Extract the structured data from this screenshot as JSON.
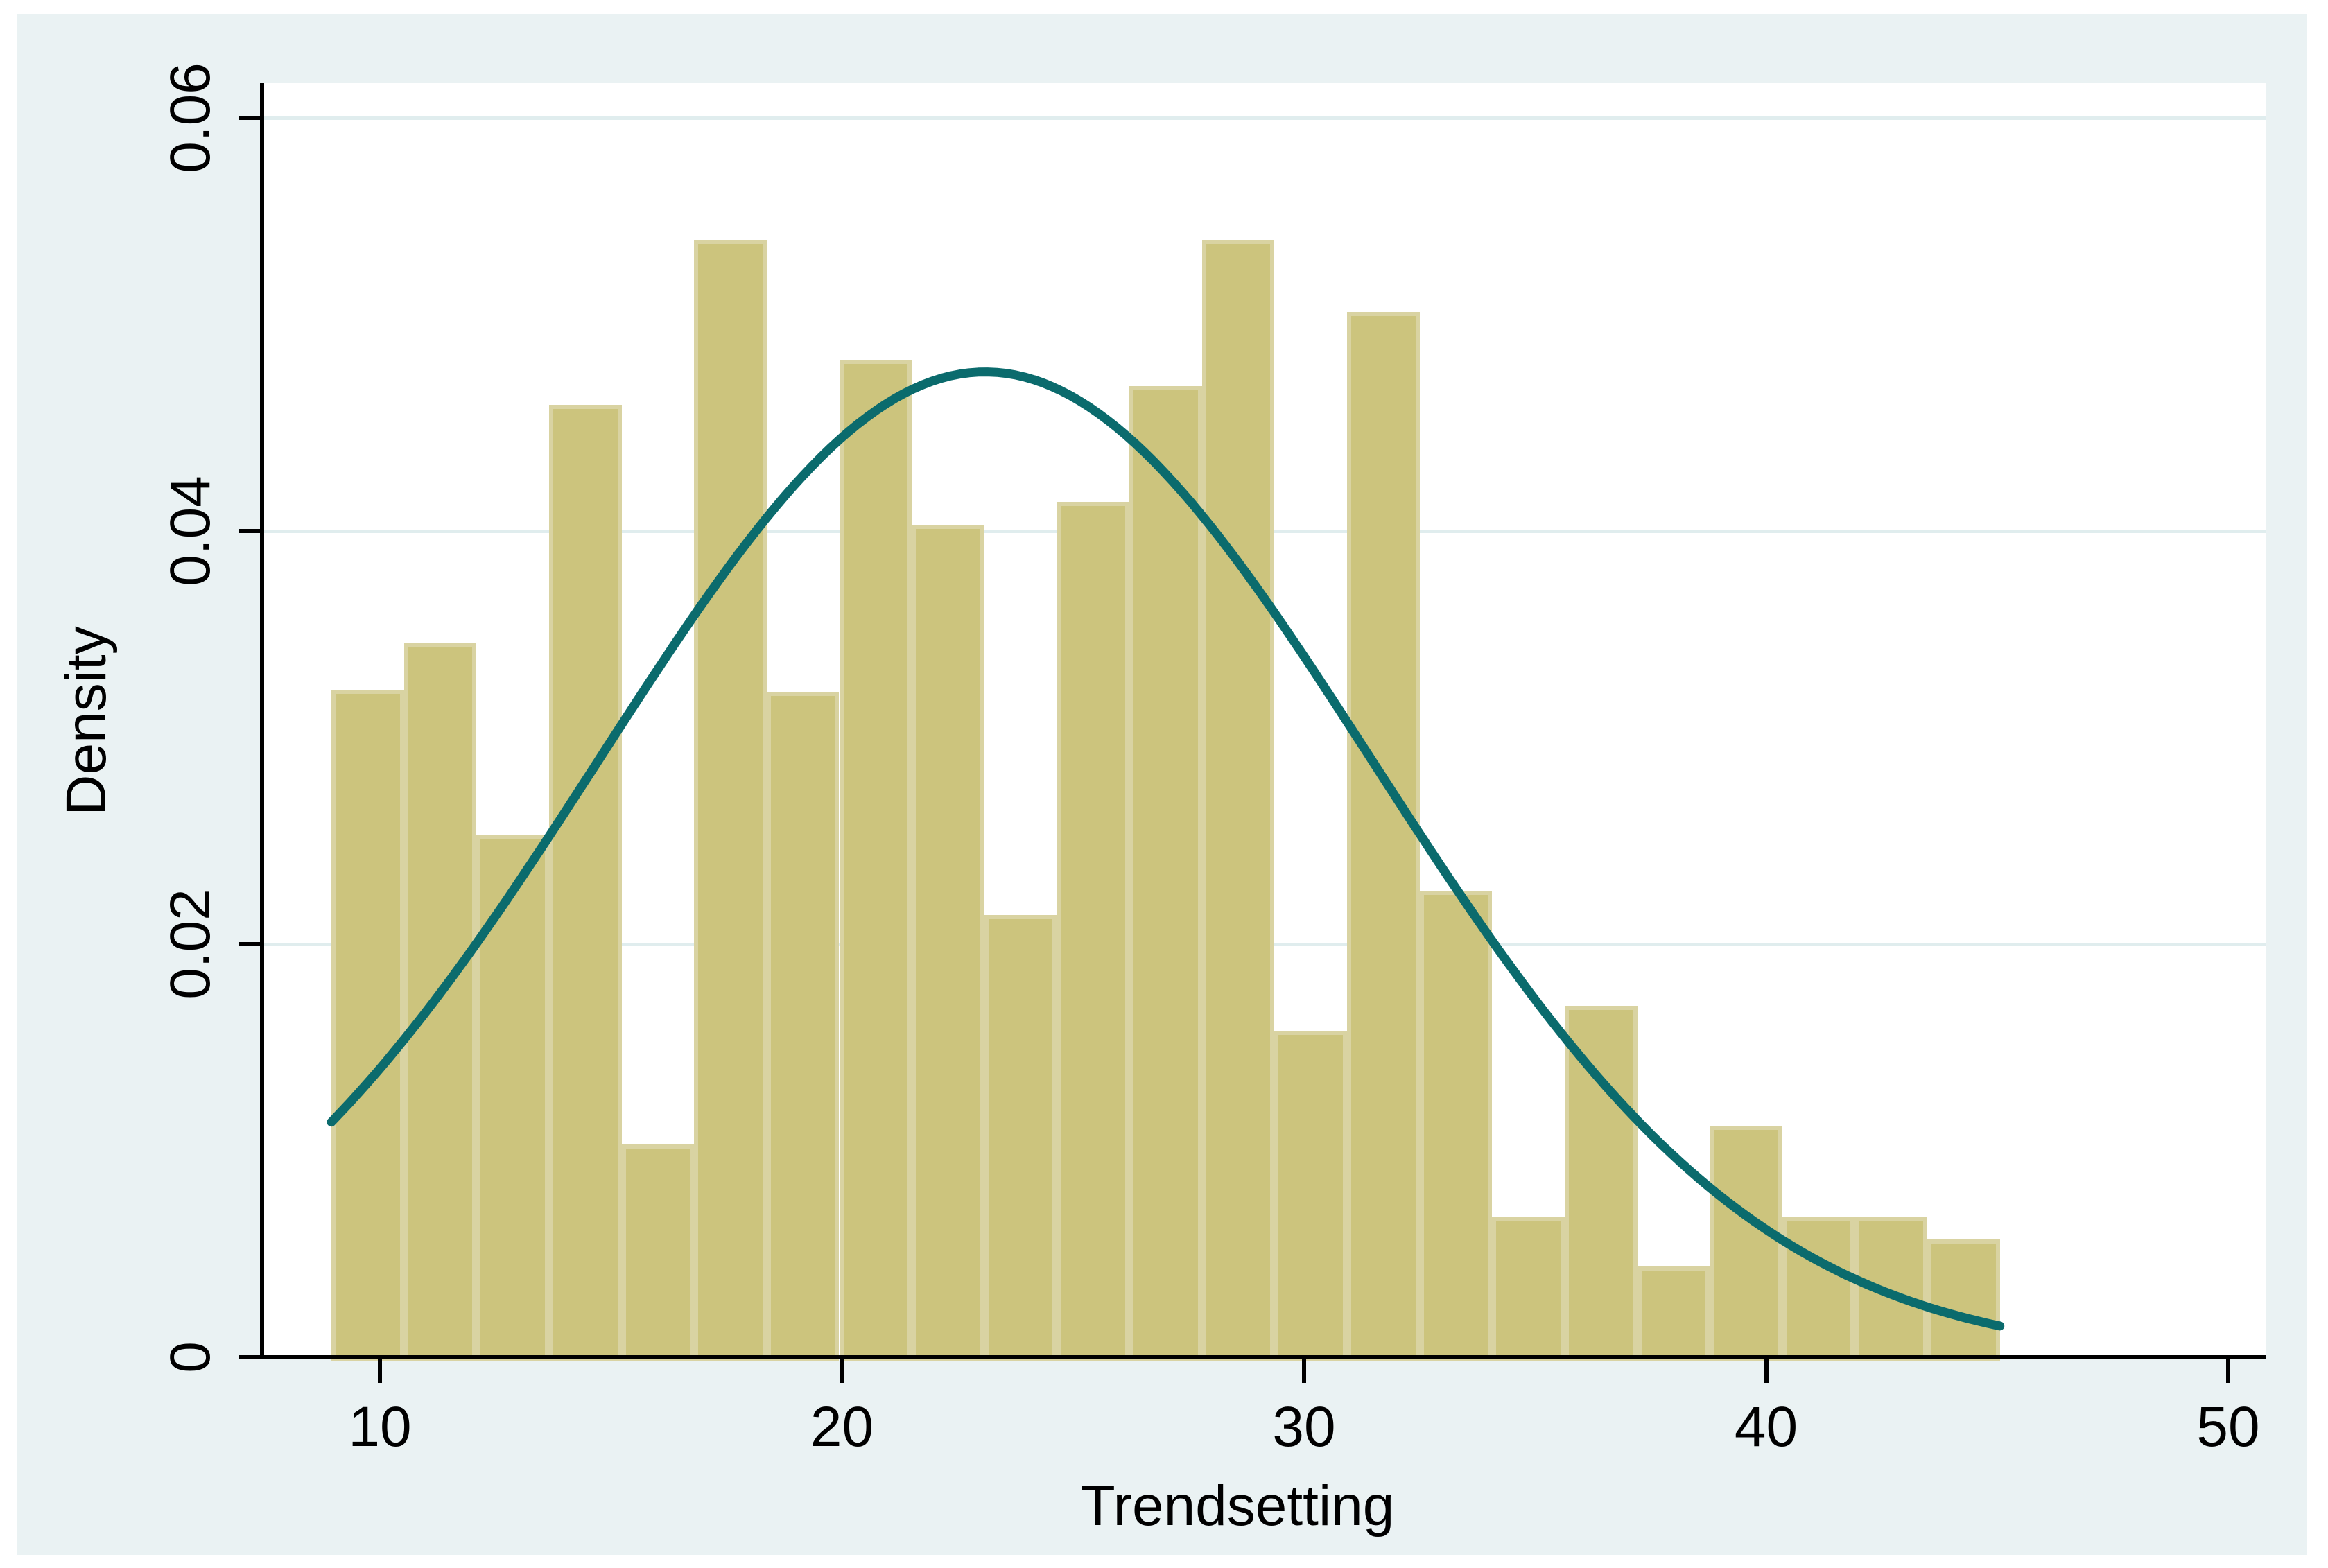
{
  "chart_data": {
    "type": "bar",
    "subtype": "histogram_with_normal_density_overlay",
    "title": "",
    "xlabel": "Trendsetting",
    "ylabel": "Density",
    "x_tick_labels": [
      "10",
      "20",
      "30",
      "40",
      "50"
    ],
    "x_tick_values": [
      10,
      20,
      30,
      40,
      50
    ],
    "y_tick_labels": [
      "0",
      "0.02",
      "0.04",
      "0.06"
    ],
    "y_tick_values": [
      0,
      0.02,
      0.04,
      0.06
    ],
    "xlim": [
      7.45,
      50.8
    ],
    "ylim": [
      0,
      0.0617
    ],
    "grid": "horizontal gridlines at y = 0.02, 0.04, 0.06; drawn behind bars",
    "legend_position": "none",
    "bins": {
      "start": 8.95,
      "width": 1.57,
      "count": 23
    },
    "densities": [
      0.0323,
      0.0346,
      0.0253,
      0.0461,
      0.0103,
      0.0541,
      0.0322,
      0.0483,
      0.0403,
      0.0214,
      0.0414,
      0.047,
      0.0541,
      0.0158,
      0.0506,
      0.0226,
      0.0068,
      0.017,
      0.0044,
      0.0112,
      0.0068,
      0.0068,
      0.0057
    ],
    "normal_curve": {
      "mean": 23.1,
      "sd": 8.36,
      "peak_density": 0.0477,
      "x_start": 8.95,
      "x_end": 45.06
    },
    "colors": {
      "bar_fill": "#CCC47D",
      "bar_outline": "#D9D3A2",
      "curve": "#0B6B6D",
      "figure_background": "#EAF2F3",
      "plot_background": "#FFFFFF",
      "gridline": "#E0EDEE",
      "axis": "#000000",
      "page_background": "#FFFFFF"
    }
  }
}
